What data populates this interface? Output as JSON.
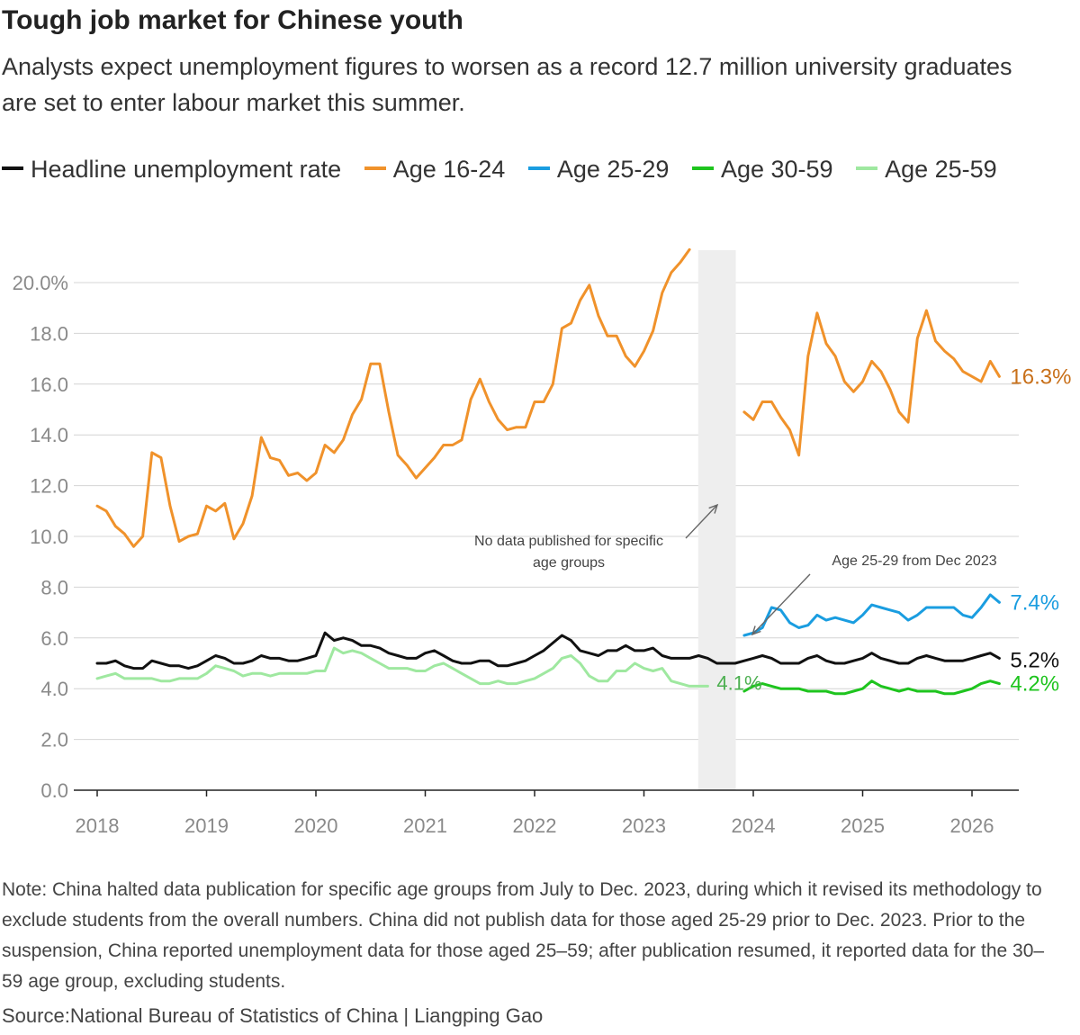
{
  "header": {
    "title": "Tough job market for Chinese youth",
    "subtitle": "Analysts expect unemployment figures to worsen as a record 12.7 million university graduates are set to enter labour market this summer."
  },
  "footer": {
    "note": "Note: China halted data publication for specific age groups from July to Dec. 2023, during which it revised its methodology to exclude students from the overall numbers. China did not publish data for those aged 25-29 prior to Dec. 2023. Prior to the suspension, China reported unemployment data for those aged 25–59; after publication resumed, it reported data for the 30–59 age group, excluding students.",
    "source": "Source:National Bureau of Statistics of China | Liangping Gao"
  },
  "chart_data": {
    "type": "line",
    "title": "Tough job market for Chinese youth",
    "xlabel": "",
    "ylabel": "",
    "ylim": [
      0,
      20
    ],
    "yticks": [
      {
        "value": 0,
        "label": "0.0"
      },
      {
        "value": 2,
        "label": "2.0"
      },
      {
        "value": 4,
        "label": "4.0"
      },
      {
        "value": 6,
        "label": "6.0"
      },
      {
        "value": 8,
        "label": "8.0"
      },
      {
        "value": 10,
        "label": "10.0"
      },
      {
        "value": 12,
        "label": "12.0"
      },
      {
        "value": 14,
        "label": "14.0"
      },
      {
        "value": 16,
        "label": "16.0"
      },
      {
        "value": 18,
        "label": "18.0"
      },
      {
        "value": 20,
        "label": "20.0%"
      }
    ],
    "xticks": [
      "2018",
      "2019",
      "2020",
      "2021",
      "2022",
      "2023",
      "2024",
      "2025",
      "2026"
    ],
    "x_start": "2018-01",
    "grid": true,
    "legend_position": "top",
    "gap_band": {
      "start": "2023-07",
      "end": "2023-11"
    },
    "series": [
      {
        "name": "Headline unemployment rate",
        "color": "#111111",
        "label": "5.2%",
        "segments": [
          {
            "start": "2018-01",
            "values": [
              5.0,
              5.0,
              5.1,
              4.9,
              4.8,
              4.8,
              5.1,
              5.0,
              4.9,
              4.9,
              4.8,
              4.9,
              5.1,
              5.3,
              5.2,
              5.0,
              5.0,
              5.1,
              5.3,
              5.2,
              5.2,
              5.1,
              5.1,
              5.2,
              5.3,
              6.2,
              5.9,
              6.0,
              5.9,
              5.7,
              5.7,
              5.6,
              5.4,
              5.3,
              5.2,
              5.2,
              5.4,
              5.5,
              5.3,
              5.1,
              5.0,
              5.0,
              5.1,
              5.1,
              4.9,
              4.9,
              5.0,
              5.1,
              5.3,
              5.5,
              5.8,
              6.1,
              5.9,
              5.5,
              5.4,
              5.3,
              5.5,
              5.5,
              5.7,
              5.5,
              5.5,
              5.6,
              5.3,
              5.2,
              5.2,
              5.2,
              5.3,
              5.2,
              5.0,
              5.0,
              5.0,
              5.1,
              5.2,
              5.3,
              5.2,
              5.0,
              5.0,
              5.0,
              5.2,
              5.3,
              5.1,
              5.0,
              5.0,
              5.1,
              5.2,
              5.4,
              5.2,
              5.1,
              5.0,
              5.0,
              5.2,
              5.3,
              5.2,
              5.1,
              5.1,
              5.1,
              5.2,
              5.3,
              5.4,
              5.2
            ]
          }
        ]
      },
      {
        "name": "Age 16-24",
        "color": "#f0922b",
        "label": "16.3%",
        "segments": [
          {
            "start": "2018-01",
            "values": [
              11.2,
              11.0,
              10.4,
              10.1,
              9.6,
              10.0,
              13.3,
              13.1,
              11.2,
              9.8,
              10.0,
              10.1,
              11.2,
              11.0,
              11.3,
              9.9,
              10.5,
              11.6,
              13.9,
              13.1,
              13.0,
              12.4,
              12.5,
              12.2,
              12.5,
              13.6,
              13.3,
              13.8,
              14.8,
              15.4,
              16.8,
              16.8,
              14.9,
              13.2,
              12.8,
              12.3,
              12.7,
              13.1,
              13.6,
              13.6,
              13.8,
              15.4,
              16.2,
              15.3,
              14.6,
              14.2,
              14.3,
              14.3,
              15.3,
              15.3,
              16.0,
              18.2,
              18.4,
              19.3,
              19.9,
              18.7,
              17.9,
              17.9,
              17.1,
              16.7,
              17.3,
              18.1,
              19.6,
              20.4,
              20.8,
              21.3
            ]
          },
          {
            "start": "2023-12",
            "values": [
              14.9,
              14.6,
              15.3,
              15.3,
              14.7,
              14.2,
              13.2,
              17.1,
              18.8,
              17.6,
              17.1,
              16.1,
              15.7,
              16.1,
              16.9,
              16.5,
              15.8,
              14.9,
              14.5,
              17.8,
              18.9,
              17.7,
              17.3,
              17.0,
              16.5,
              16.3,
              16.1,
              16.9,
              16.3
            ]
          }
        ]
      },
      {
        "name": "Age 25-29",
        "color": "#1a9de0",
        "label": "7.4%",
        "segments": [
          {
            "start": "2023-12",
            "values": [
              6.1,
              6.2,
              6.4,
              7.2,
              7.1,
              6.6,
              6.4,
              6.5,
              6.9,
              6.7,
              6.8,
              6.7,
              6.6,
              6.9,
              7.3,
              7.2,
              7.1,
              7.0,
              6.7,
              6.9,
              7.2,
              7.2,
              7.2,
              7.2,
              6.9,
              6.8,
              7.2,
              7.7,
              7.4
            ]
          }
        ]
      },
      {
        "name": "Age 30-59",
        "color": "#1ec41e",
        "label": "4.2%",
        "segments": [
          {
            "start": "2023-12",
            "values": [
              3.9,
              4.1,
              4.2,
              4.1,
              4.0,
              4.0,
              4.0,
              3.9,
              3.9,
              3.9,
              3.8,
              3.8,
              3.9,
              4.0,
              4.3,
              4.1,
              4.0,
              3.9,
              4.0,
              3.9,
              3.9,
              3.9,
              3.8,
              3.8,
              3.9,
              4.0,
              4.2,
              4.3,
              4.2
            ]
          }
        ]
      },
      {
        "name": "Age 25-59",
        "color": "#9fe8a0",
        "label": "4.1%",
        "segments": [
          {
            "start": "2018-01",
            "values": [
              4.4,
              4.5,
              4.6,
              4.4,
              4.4,
              4.4,
              4.4,
              4.3,
              4.3,
              4.4,
              4.4,
              4.4,
              4.6,
              4.9,
              4.8,
              4.7,
              4.5,
              4.6,
              4.6,
              4.5,
              4.6,
              4.6,
              4.6,
              4.6,
              4.7,
              4.7,
              5.6,
              5.4,
              5.5,
              5.4,
              5.2,
              5.0,
              4.8,
              4.8,
              4.8,
              4.7,
              4.7,
              4.9,
              5.0,
              4.8,
              4.6,
              4.4,
              4.2,
              4.2,
              4.3,
              4.2,
              4.2,
              4.3,
              4.4,
              4.6,
              4.8,
              5.2,
              5.3,
              5.0,
              4.5,
              4.3,
              4.3,
              4.7,
              4.7,
              5.0,
              4.8,
              4.7,
              4.8,
              4.3,
              4.2,
              4.1,
              4.1,
              4.1
            ]
          }
        ]
      }
    ],
    "annotations": [
      {
        "text": "No data published for specific age groups"
      },
      {
        "text": "Age 25-29 from Dec 2023"
      }
    ]
  }
}
